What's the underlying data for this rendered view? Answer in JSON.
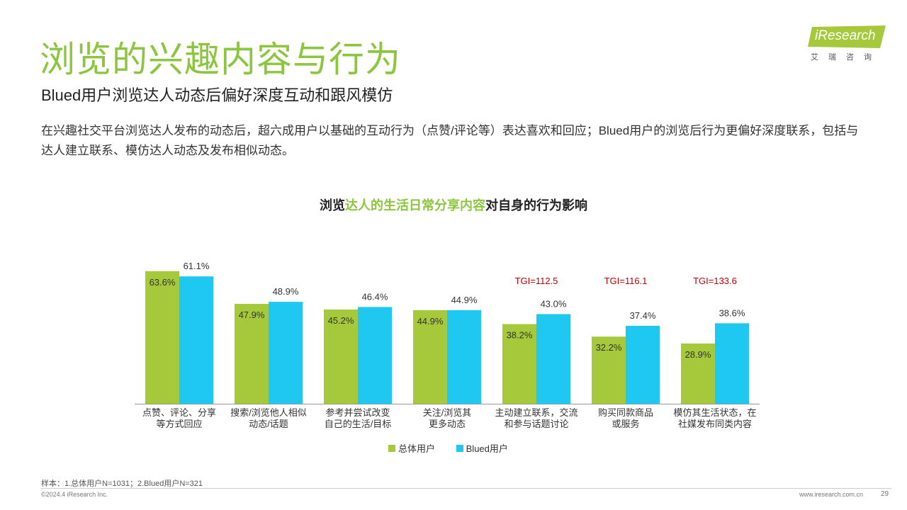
{
  "header": {
    "title": "浏览的兴趣内容与行为",
    "subtitle": "Blued用户浏览达人动态后偏好深度互动和跟风模仿",
    "description": "在兴趣社交平台浏览达人发布的动态后，超六成用户以基础的互动行为（点赞/评论等）表达喜欢和回应；Blued用户的浏览后行为更偏好深度联系，包括与达人建立联系、模仿达人动态及发布相似动态。"
  },
  "logo": {
    "text": "iResearch",
    "cn": "艾瑞咨询"
  },
  "chart_title": {
    "part1": "浏览",
    "part2": "达人的生活日常分享内容",
    "part3": "对自身的行为影响"
  },
  "colors": {
    "accent": "#8cc63f",
    "series_total": "#a5c93a",
    "series_blued": "#1ec8f0",
    "tgi": "#c00000"
  },
  "chart_data": {
    "type": "bar",
    "title": "浏览达人的生活日常分享内容对自身的行为影响",
    "categories": [
      [
        "点赞、评论、分享",
        "等方式回应"
      ],
      [
        "搜索/浏览他人相似",
        "动态/话题"
      ],
      [
        "参考并尝试改变",
        "自己的生活/目标"
      ],
      [
        "关注/浏览其",
        "更多动态"
      ],
      [
        "主动建立联系，交流",
        "和参与话题讨论"
      ],
      [
        "购买同款商品",
        "或服务"
      ],
      [
        "模仿其生活状态，在",
        "社媒发布同类内容"
      ]
    ],
    "series": [
      {
        "name": "总体用户",
        "values": [
          63.6,
          47.9,
          45.2,
          44.9,
          38.2,
          32.2,
          28.9
        ],
        "labels": [
          "63.6%",
          "47.9%",
          "45.2%",
          "44.9%",
          "38.2%",
          "32.2%",
          "28.9%"
        ]
      },
      {
        "name": "Blued用户",
        "values": [
          61.1,
          48.9,
          46.4,
          44.9,
          43.0,
          37.4,
          38.6
        ],
        "labels": [
          "61.1%",
          "48.9%",
          "46.4%",
          "44.9%",
          "43.0%",
          "37.4%",
          "38.6%"
        ]
      }
    ],
    "tgi": [
      "",
      "",
      "",
      "",
      "TGI=112.5",
      "TGI=116.1",
      "TGI=133.6"
    ],
    "ylim": [
      0,
      70
    ],
    "legend": "bottom"
  },
  "footer": {
    "sample": "样本：1.总体用户N=1031；2.Blued用户N=321",
    "copyright": "©2024.4 iResearch Inc.",
    "website": "www.iresearch.com.cn",
    "page": "29"
  }
}
